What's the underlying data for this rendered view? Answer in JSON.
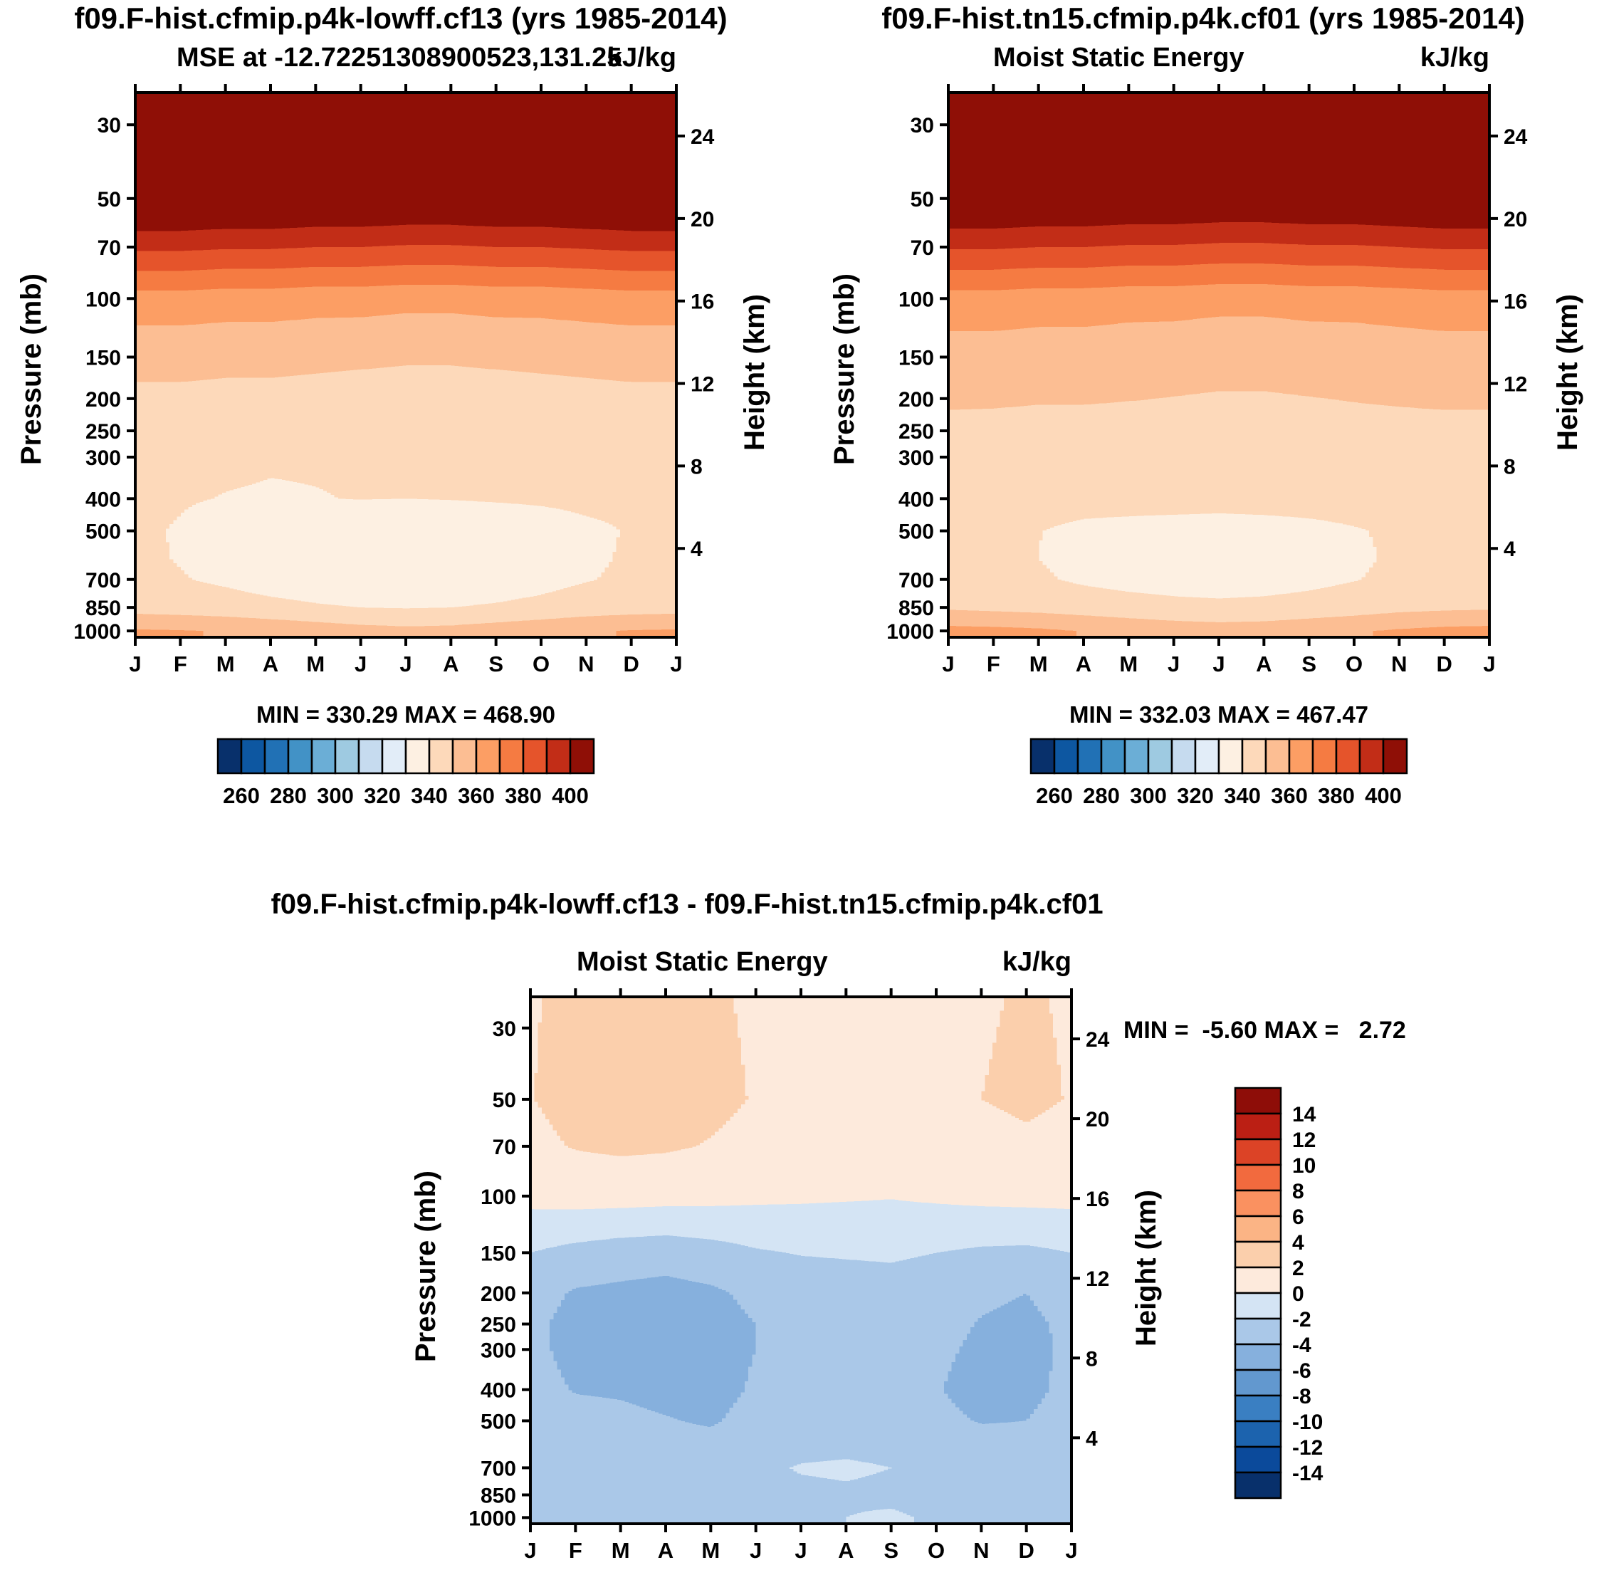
{
  "colors": {
    "background": "#ffffff",
    "axis": "#000000",
    "mse_bands": [
      "#08306b",
      "#0d57a1",
      "#2171b5",
      "#4292c6",
      "#6baed6",
      "#9ecae1",
      "#c6dbef",
      "#e2edf8",
      "#fdf0e2",
      "#fdd9ba",
      "#fcbe93",
      "#fc9e64",
      "#f57b42",
      "#e5542b",
      "#c22d17",
      "#8f0f06"
    ],
    "diff_bands": [
      "#08306b",
      "#0b4a9b",
      "#1c63ae",
      "#3a7fc2",
      "#6298cf",
      "#86b0dd",
      "#aac8e8",
      "#d4e4f4",
      "#fdeadc",
      "#fbcfac",
      "#fbb485",
      "#fa9160",
      "#f26a3e",
      "#dc4326",
      "#bb1f14",
      "#8e0d08"
    ]
  },
  "chart_data": [
    {
      "type": "heatmap",
      "title": "f09.F-hist.cfmip.p4k-lowff.cf13 (yrs 1985-2014)",
      "subtitle": "MSE at -12.72251308900523,131.25",
      "units": "kJ/kg",
      "stats": "MIN = 330.29 MAX = 468.90",
      "min": 330.29,
      "max": 468.9,
      "ylabel": "Pressure (mb)",
      "ylabel_right": "Height (km)",
      "xlabel": "",
      "palette": "mse_bands",
      "x_categories": [
        "J",
        "F",
        "M",
        "A",
        "M",
        "J",
        "J",
        "A",
        "S",
        "O",
        "N",
        "D",
        "J"
      ],
      "y_axis_ticks_mb": [
        30,
        50,
        70,
        100,
        150,
        200,
        250,
        300,
        400,
        500,
        700,
        850,
        1000
      ],
      "height_axis_ticks_km": [
        24,
        20,
        16,
        12,
        8,
        4
      ],
      "contour_levels": [
        250,
        260,
        270,
        280,
        290,
        300,
        310,
        320,
        330,
        340,
        350,
        360,
        370,
        380,
        390,
        400,
        410
      ],
      "colorbar_tick_labels": [
        "260",
        "280",
        "300",
        "320",
        "340",
        "360",
        "380",
        "400"
      ],
      "y_pressures_mb": [
        25,
        50,
        70,
        100,
        150,
        200,
        250,
        300,
        400,
        500,
        600,
        700,
        850,
        1000
      ],
      "values": [
        [
          466,
          416,
          392,
          366,
          353,
          348,
          344,
          342,
          341.5,
          341,
          341.5,
          342,
          346,
          361
        ],
        [
          466,
          416,
          392,
          366,
          353,
          348,
          343.5,
          341.5,
          340.5,
          339.5,
          339.5,
          340.5,
          345,
          360.5
        ],
        [
          466,
          415,
          391,
          365,
          352.5,
          347.5,
          343,
          341,
          339.8,
          337,
          337,
          338.5,
          344,
          359.5
        ],
        [
          465,
          415,
          391,
          365,
          352.5,
          347.5,
          343,
          340.5,
          339.5,
          335,
          334.5,
          336,
          342.5,
          357.5
        ],
        [
          465,
          414,
          390,
          364,
          352,
          347,
          343,
          340.5,
          339.8,
          334,
          333.5,
          334.5,
          341,
          355.5
        ],
        [
          464,
          414,
          390,
          364,
          351.5,
          346.5,
          343,
          340.5,
          340.2,
          333,
          332.5,
          333.5,
          340,
          353.5
        ],
        [
          464,
          413,
          389,
          363,
          351,
          346,
          343,
          340.5,
          340,
          332.5,
          331.5,
          333,
          339.5,
          352.5
        ],
        [
          464,
          413,
          389,
          363,
          351,
          346,
          343,
          341,
          340.3,
          333,
          332,
          333.5,
          340,
          353
        ],
        [
          465,
          414,
          390,
          364,
          351.5,
          346.5,
          343.5,
          341,
          340.8,
          334,
          333.5,
          335,
          341,
          355
        ],
        [
          465,
          414,
          390,
          364,
          352,
          347,
          344,
          341.5,
          341.2,
          336,
          335.5,
          337,
          342.5,
          357
        ],
        [
          466,
          415,
          391,
          365,
          352.5,
          347.5,
          344,
          342,
          341.8,
          338.5,
          338.5,
          339.5,
          344.5,
          359
        ],
        [
          466,
          416,
          392,
          366,
          353,
          348,
          344,
          342,
          341.6,
          340.5,
          341,
          341.5,
          345.5,
          360.5
        ],
        [
          466,
          416,
          392,
          366,
          353,
          348,
          344,
          342,
          341.5,
          341,
          341.5,
          342,
          346,
          361
        ]
      ]
    },
    {
      "type": "heatmap",
      "title": "f09.F-hist.tn15.cfmip.p4k.cf01 (yrs 1985-2014)",
      "subtitle": "Moist Static Energy",
      "units": "kJ/kg",
      "stats": "MIN = 332.03 MAX = 467.47",
      "min": 332.03,
      "max": 467.47,
      "ylabel": "Pressure (mb)",
      "ylabel_right": "Height (km)",
      "xlabel": "",
      "palette": "mse_bands",
      "x_categories": [
        "J",
        "F",
        "M",
        "A",
        "M",
        "J",
        "J",
        "A",
        "S",
        "O",
        "N",
        "D",
        "J"
      ],
      "y_axis_ticks_mb": [
        30,
        50,
        70,
        100,
        150,
        200,
        250,
        300,
        400,
        500,
        700,
        850,
        1000
      ],
      "height_axis_ticks_km": [
        24,
        20,
        16,
        12,
        8,
        4
      ],
      "contour_levels": [
        250,
        260,
        270,
        280,
        290,
        300,
        310,
        320,
        330,
        340,
        350,
        360,
        370,
        380,
        390,
        400,
        410
      ],
      "colorbar_tick_labels": [
        "260",
        "280",
        "300",
        "320",
        "340",
        "360",
        "380",
        "400"
      ],
      "y_pressures_mb": [
        25,
        50,
        70,
        100,
        150,
        200,
        250,
        300,
        400,
        500,
        600,
        700,
        850,
        1000
      ],
      "values": [
        [
          464.5,
          414.5,
          391,
          366,
          355.2,
          351.3,
          347.6,
          345.7,
          345.1,
          344.2,
          344.4,
          344.6,
          348.6,
          363.1
        ],
        [
          464.5,
          414.5,
          391,
          366,
          355.2,
          351.3,
          347.1,
          345.2,
          344.1,
          342.7,
          342.4,
          343.1,
          347.6,
          362.6
        ],
        [
          464.5,
          413.5,
          390,
          365,
          354.7,
          350.8,
          346.6,
          344.7,
          343.4,
          340.2,
          339.9,
          341.1,
          346.6,
          361.6
        ],
        [
          463.5,
          413.5,
          390,
          365,
          354.7,
          350.8,
          346.6,
          344.2,
          343.1,
          338.2,
          337.4,
          338.6,
          345.1,
          359.6
        ],
        [
          463.5,
          412.5,
          389,
          364,
          354.2,
          350.3,
          346.6,
          344.2,
          343.4,
          337.2,
          336.4,
          337.1,
          343.6,
          357.6
        ],
        [
          462.5,
          412.5,
          389,
          364,
          353.7,
          349.8,
          346.6,
          344.2,
          343.8,
          336.2,
          335.4,
          336.1,
          342.6,
          355.6
        ],
        [
          462.5,
          411.5,
          388,
          363,
          353.2,
          349.3,
          346.6,
          344.2,
          343.6,
          335.7,
          334.4,
          335.6,
          342.1,
          354.6
        ],
        [
          462.5,
          411.5,
          388,
          363,
          353.2,
          349.3,
          346.6,
          344.7,
          343.9,
          336.2,
          334.9,
          336.1,
          342.6,
          355.1
        ],
        [
          463.5,
          412.5,
          389,
          364,
          353.7,
          349.8,
          347.1,
          344.7,
          344.4,
          337.2,
          336.4,
          337.6,
          343.6,
          357.1
        ],
        [
          463.5,
          412.5,
          389,
          364,
          354.2,
          350.3,
          347.6,
          345.2,
          344.8,
          339.2,
          338.4,
          339.6,
          345.1,
          359.1
        ],
        [
          464.5,
          413.5,
          390,
          365,
          354.7,
          350.8,
          347.6,
          345.7,
          345.4,
          341.7,
          341.4,
          342.1,
          347.1,
          361.1
        ],
        [
          464.5,
          414.5,
          391,
          366,
          355.2,
          351.3,
          347.6,
          345.7,
          345.2,
          343.7,
          343.9,
          344.1,
          348.1,
          362.6
        ],
        [
          464.5,
          414.5,
          391,
          366,
          355.2,
          351.3,
          347.6,
          345.7,
          345.1,
          344.2,
          344.4,
          344.6,
          348.6,
          363.1
        ]
      ]
    },
    {
      "type": "heatmap",
      "title": "f09.F-hist.cfmip.p4k-lowff.cf13 - f09.F-hist.tn15.cfmip.p4k.cf01",
      "subtitle": "Moist Static Energy",
      "units": "kJ/kg",
      "stats": "MIN =  -5.60 MAX =   2.72",
      "min": -5.6,
      "max": 2.72,
      "ylabel": "Pressure (mb)",
      "ylabel_right": "Height (km)",
      "xlabel": "",
      "palette": "diff_bands",
      "x_categories": [
        "J",
        "F",
        "M",
        "A",
        "M",
        "J",
        "J",
        "A",
        "S",
        "O",
        "N",
        "D",
        "J"
      ],
      "y_axis_ticks_mb": [
        30,
        50,
        70,
        100,
        150,
        200,
        250,
        300,
        400,
        500,
        700,
        850,
        1000
      ],
      "height_axis_ticks_km": [
        24,
        20,
        16,
        12,
        8,
        4
      ],
      "contour_levels": [
        -16,
        -14,
        -12,
        -10,
        -8,
        -6,
        -4,
        -2,
        0,
        2,
        4,
        6,
        8,
        10,
        12,
        14,
        16
      ],
      "colorbar_tick_labels": [
        "14",
        "12",
        "10",
        "8",
        "6",
        "4",
        "2",
        "0",
        "-2",
        "-4",
        "-6",
        "-8",
        "-10",
        "-12",
        "-14"
      ],
      "y_pressures_mb": [
        25,
        50,
        70,
        100,
        150,
        200,
        250,
        300,
        400,
        500,
        600,
        700,
        850,
        1000
      ],
      "values": [
        [
          1.9,
          1.95,
          1.6,
          0.6,
          -2.0,
          -3.2,
          -3.6,
          -3.6,
          -3.4,
          -3.0,
          -2.8,
          -2.7,
          -2.8,
          -2.4
        ],
        [
          2.3,
          2.5,
          2.1,
          0.8,
          -2.6,
          -4.2,
          -4.6,
          -4.5,
          -4.1,
          -3.4,
          -3.0,
          -2.9,
          -3.0,
          -2.6
        ],
        [
          2.5,
          2.7,
          2.3,
          0.8,
          -3.0,
          -4.4,
          -4.7,
          -4.6,
          -4.2,
          -3.6,
          -3.1,
          -3.0,
          -3.1,
          -2.6
        ],
        [
          2.5,
          2.7,
          2.2,
          0.7,
          -3.2,
          -4.6,
          -4.8,
          -4.7,
          -4.5,
          -3.9,
          -3.3,
          -3.1,
          -3.1,
          -2.6
        ],
        [
          2.2,
          2.4,
          1.9,
          0.6,
          -2.8,
          -4.3,
          -4.6,
          -4.6,
          -4.6,
          -4.2,
          -3.4,
          -3.1,
          -3.0,
          -2.5
        ],
        [
          1.8,
          1.9,
          1.5,
          0.4,
          -2.2,
          -3.6,
          -4.0,
          -4.0,
          -3.8,
          -3.4,
          -2.9,
          -2.3,
          -2.6,
          -2.2
        ],
        [
          1.6,
          1.6,
          1.2,
          0.3,
          -1.9,
          -3.2,
          -3.6,
          -3.6,
          -3.4,
          -3.0,
          -2.4,
          -1.9,
          -2.3,
          -2.1
        ],
        [
          1.5,
          1.5,
          1.1,
          0.2,
          -1.8,
          -3.0,
          -3.4,
          -3.4,
          -3.2,
          -2.8,
          -2.3,
          -1.8,
          -2.2,
          -2.0
        ],
        [
          1.4,
          1.4,
          1.0,
          0.1,
          -1.7,
          -2.9,
          -3.2,
          -3.2,
          -3.0,
          -2.7,
          -2.4,
          -2.0,
          -2.3,
          -1.8
        ],
        [
          1.6,
          1.6,
          1.2,
          0.3,
          -2.0,
          -3.2,
          -3.5,
          -3.7,
          -3.9,
          -3.6,
          -3.0,
          -2.6,
          -2.6,
          -2.2
        ],
        [
          1.9,
          2.0,
          1.6,
          0.5,
          -2.3,
          -3.7,
          -4.1,
          -4.3,
          -4.6,
          -4.1,
          -3.3,
          -2.9,
          -2.8,
          -2.3
        ],
        [
          2.1,
          2.2,
          1.8,
          0.6,
          -2.4,
          -4.0,
          -4.4,
          -4.6,
          -4.6,
          -4.0,
          -3.4,
          -3.0,
          -2.9,
          -2.4
        ],
        [
          1.9,
          1.95,
          1.6,
          0.6,
          -2.0,
          -3.2,
          -3.6,
          -3.6,
          -3.4,
          -3.0,
          -2.8,
          -2.7,
          -2.8,
          -2.4
        ]
      ]
    }
  ]
}
